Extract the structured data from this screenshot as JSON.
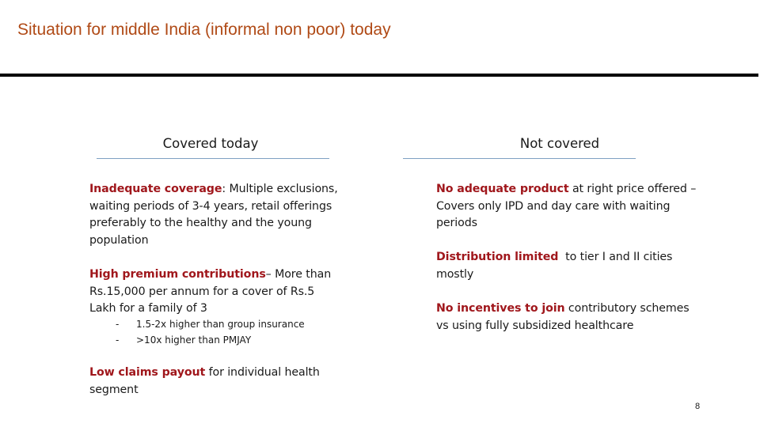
{
  "slide": {
    "title": "Situation for middle India (informal non poor) today",
    "page_number": "8"
  },
  "columns": {
    "left": {
      "header": "Covered today",
      "items": [
        {
          "highlight": "Inadequate coverage",
          "text": ": Multiple exclusions, waiting periods of 3-4 years, retail offerings preferably to the healthy and the young population"
        },
        {
          "highlight": "High premium contributions",
          "text": "– More than Rs.15,000 per annum for a cover of Rs.5 Lakh for a family of 3",
          "subitems": [
            {
              "dash": "-",
              "text": "1.5-2x higher than group insurance"
            },
            {
              "dash": "-",
              "text": ">10x higher than PMJAY"
            }
          ]
        },
        {
          "highlight": "Low claims payout",
          "text": " for individual health segment"
        }
      ]
    },
    "right": {
      "header": "Not covered",
      "items": [
        {
          "highlight": "No adequate product",
          "text": " at right price offered – Covers only IPD and day care with waiting periods"
        },
        {
          "highlight": "Distribution limited",
          "text": "  to tier I and II cities mostly"
        },
        {
          "highlight": "No incentives to join",
          "text": " contributory schemes vs using fully subsidized healthcare"
        }
      ]
    }
  },
  "colors": {
    "title": "#b04a16",
    "highlight": "#a0171c",
    "header_rule": "#7fa1c2",
    "title_rule": "#000000"
  }
}
